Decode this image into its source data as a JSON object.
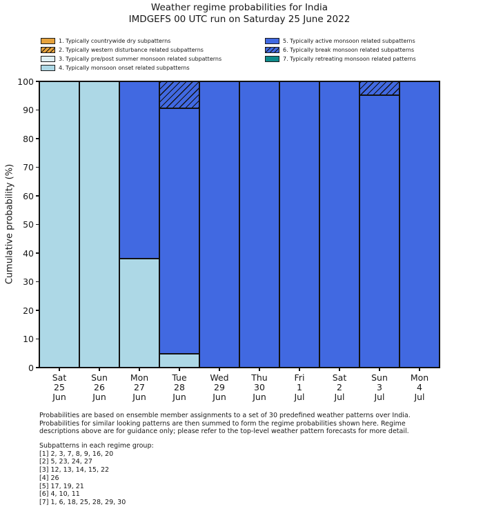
{
  "header": {
    "title": "Weather regime probabilities for India",
    "subtitle": "IMDGEFS 00 UTC run on Saturday 25 June 2022"
  },
  "colors": {
    "regime_dry": "#E6A23C",
    "regime_western_disturbance": "#E6A23C",
    "regime_pre_post_summer": "#DFF0F5",
    "regime_monsoon_onset": "#ADD8E6",
    "regime_active_monsoon": "#4169E1",
    "regime_break_monsoon": "#4169E1",
    "regime_retreating_monsoon": "#0E8A8A",
    "bar_edge": "#111111",
    "text": "#161616"
  },
  "regimes": {
    "1": {
      "color": "#E6A23C",
      "hatch": false
    },
    "2": {
      "color": "#E6A23C",
      "hatch": true
    },
    "3": {
      "color": "#DFF0F5",
      "hatch": false
    },
    "4": {
      "color": "#ADD8E6",
      "hatch": false
    },
    "5": {
      "color": "#4169E1",
      "hatch": false
    },
    "6": {
      "color": "#4169E1",
      "hatch": true
    },
    "7": {
      "color": "#0E8A8A",
      "hatch": false
    }
  },
  "legend": {
    "columns": [
      [
        {
          "label": "1. Typically countrywide dry subpatterns",
          "regime": 1
        },
        {
          "label": "2. Typically western disturbance related subpatterns",
          "regime": 2
        },
        {
          "label": "3. Typically pre/post summer monsoon related subpatterns",
          "regime": 3
        },
        {
          "label": "4. Typically monsoon onset related subpatterns",
          "regime": 4
        }
      ],
      [
        {
          "label": "5. Typically active monsoon related subpatterns",
          "regime": 5
        },
        {
          "label": "6. Typically break monsoon related subpatterns",
          "regime": 6
        },
        {
          "label": "7. Typically retreating monsoon related patterns",
          "regime": 7
        }
      ]
    ]
  },
  "chart_data": {
    "type": "bar",
    "stacked": true,
    "title": "Weather regime probabilities for India",
    "subtitle": "IMDGEFS 00 UTC run on Saturday 25 June 2022",
    "xlabel": "",
    "ylabel": "Cumulative probability (%)",
    "ylim": [
      0,
      100
    ],
    "yticks": [
      0,
      10,
      20,
      30,
      40,
      50,
      60,
      70,
      80,
      90,
      100
    ],
    "grid": false,
    "legend_position": "above-chart-two-columns",
    "categories": [
      "Sat 25 Jun",
      "Sun 26 Jun",
      "Mon 27 Jun",
      "Tue 28 Jun",
      "Wed 29 Jun",
      "Thu 30 Jun",
      "Fri 1 Jul",
      "Sat 2 Jul",
      "Sun 3 Jul",
      "Mon 4 Jul"
    ],
    "category_label_lines": [
      [
        "Sat",
        "25",
        "Jun"
      ],
      [
        "Sun",
        "26",
        "Jun"
      ],
      [
        "Mon",
        "27",
        "Jun"
      ],
      [
        "Tue",
        "28",
        "Jun"
      ],
      [
        "Wed",
        "29",
        "Jun"
      ],
      [
        "Thu",
        "30",
        "Jun"
      ],
      [
        "Fri",
        "1",
        "Jul"
      ],
      [
        "Sat",
        "2",
        "Jul"
      ],
      [
        "Sun",
        "3",
        "Jul"
      ],
      [
        "Mon",
        "4",
        "Jul"
      ]
    ],
    "series": [
      {
        "name": "1. Typically countrywide dry subpatterns",
        "regime": 1,
        "values": [
          0,
          0,
          0,
          0,
          0,
          0,
          0,
          0,
          0,
          0
        ]
      },
      {
        "name": "2. Typically western disturbance related subpatterns",
        "regime": 2,
        "values": [
          0,
          0,
          0,
          0,
          0,
          0,
          0,
          0,
          0,
          0
        ]
      },
      {
        "name": "3. Typically pre/post summer monsoon related subpatterns",
        "regime": 3,
        "values": [
          0,
          0,
          0,
          0,
          0,
          0,
          0,
          0,
          0,
          0
        ]
      },
      {
        "name": "4. Typically monsoon onset related subpatterns",
        "regime": 4,
        "values": [
          100,
          100,
          38.1,
          4.8,
          0,
          0,
          0,
          0,
          0,
          0
        ]
      },
      {
        "name": "5. Typically active monsoon related subpatterns",
        "regime": 5,
        "values": [
          0,
          0,
          61.9,
          85.7,
          100,
          100,
          100,
          100,
          95.2,
          100
        ]
      },
      {
        "name": "6. Typically break monsoon related subpatterns",
        "regime": 6,
        "values": [
          0,
          0,
          0,
          9.5,
          0,
          0,
          0,
          0,
          4.8,
          0
        ]
      },
      {
        "name": "7. Typically retreating monsoon related patterns",
        "regime": 7,
        "values": [
          0,
          0,
          0,
          0,
          0,
          0,
          0,
          0,
          0,
          0
        ]
      }
    ]
  },
  "footnote": {
    "lines": [
      "Probabilities are based on ensemble member assignments to a set of 30 predefined weather patterns over India.",
      "Probabilities for similar looking patterns are then summed to form the regime probabilities shown here. Regime",
      "descriptions above are for guidance only; please refer to the top-level weather pattern forecasts for more detail."
    ]
  },
  "subpatterns": {
    "heading": "Subpatterns in each regime group:",
    "lines": [
      "[1] 2, 3, 7, 8, 9, 16, 20",
      "[2] 5, 23, 24, 27",
      "[3] 12, 13, 14, 15, 22",
      "[4] 26",
      "[5] 17, 19, 21",
      "[6] 4, 10, 11",
      "[7] 1, 6, 18, 25, 28, 29, 30"
    ]
  }
}
